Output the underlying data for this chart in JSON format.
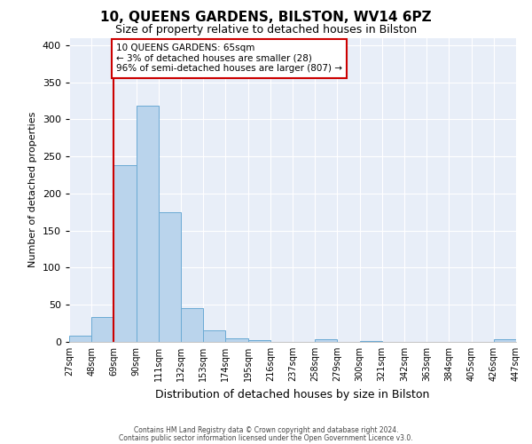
{
  "title": "10, QUEENS GARDENS, BILSTON, WV14 6PZ",
  "subtitle": "Size of property relative to detached houses in Bilston",
  "xlabel": "Distribution of detached houses by size in Bilston",
  "ylabel": "Number of detached properties",
  "bins": [
    27,
    48,
    69,
    90,
    111,
    132,
    153,
    174,
    195,
    216,
    237,
    258,
    279,
    300,
    321,
    342,
    363,
    384,
    405,
    426,
    447
  ],
  "counts": [
    8,
    33,
    238,
    318,
    175,
    45,
    16,
    5,
    2,
    0,
    0,
    3,
    0,
    1,
    0,
    0,
    0,
    0,
    0,
    3
  ],
  "bar_color": "#bad4ec",
  "bar_edge_color": "#6aaad4",
  "property_line_x": 69,
  "property_line_color": "#cc0000",
  "annotation_line1": "10 QUEENS GARDENS: 65sqm",
  "annotation_line2": "← 3% of detached houses are smaller (28)",
  "annotation_line3": "96% of semi-detached houses are larger (807) →",
  "annotation_box_edge_color": "#cc0000",
  "ylim": [
    0,
    410
  ],
  "yticks": [
    0,
    50,
    100,
    150,
    200,
    250,
    300,
    350,
    400
  ],
  "tick_labels": [
    "27sqm",
    "48sqm",
    "69sqm",
    "90sqm",
    "111sqm",
    "132sqm",
    "153sqm",
    "174sqm",
    "195sqm",
    "216sqm",
    "237sqm",
    "258sqm",
    "279sqm",
    "300sqm",
    "321sqm",
    "342sqm",
    "363sqm",
    "384sqm",
    "405sqm",
    "426sqm",
    "447sqm"
  ],
  "footer_line1": "Contains HM Land Registry data © Crown copyright and database right 2024.",
  "footer_line2": "Contains public sector information licensed under the Open Government Licence v3.0.",
  "fig_background_color": "#ffffff",
  "plot_background_color": "#e8eef8",
  "grid_color": "#ffffff",
  "title_fontsize": 11,
  "subtitle_fontsize": 9,
  "ylabel_fontsize": 8,
  "xlabel_fontsize": 9,
  "ytick_fontsize": 8,
  "xtick_fontsize": 7
}
